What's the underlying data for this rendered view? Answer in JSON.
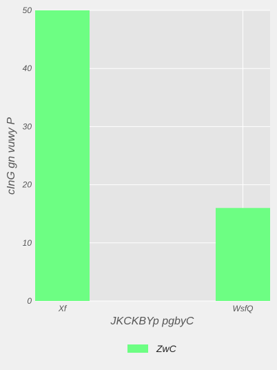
{
  "chart_data": {
    "type": "bar",
    "categories": [
      "Xf",
      "WsfQ"
    ],
    "series": [
      {
        "name": "ZwC",
        "values": [
          50,
          16
        ],
        "color": "#6dfe83"
      }
    ],
    "xlabel": "JKCKBYp pgbyC",
    "ylabel": "cInG gn vuwy P",
    "ylim": [
      0,
      50
    ],
    "yticks": [
      0,
      10,
      20,
      30,
      40,
      50
    ],
    "grid": true,
    "legend_position": "bottom-center",
    "plot_background": "#e5e5e5",
    "grid_color": "#ffffff"
  }
}
